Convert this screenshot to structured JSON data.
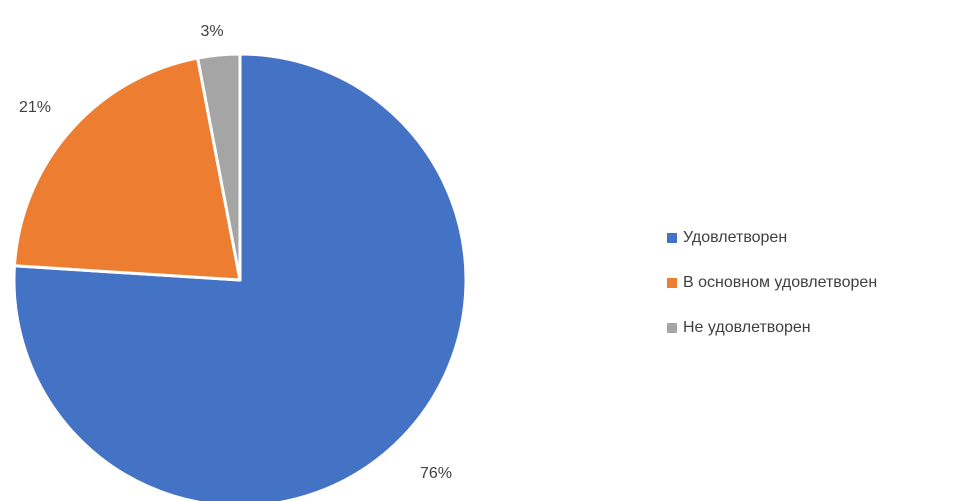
{
  "chart_data": {
    "type": "pie",
    "title": "",
    "start_angle_deg": 0,
    "direction": "clockwise",
    "slices": [
      {
        "label": "Удовлетворен",
        "value": 76,
        "value_label": "76%",
        "color": "#4472C4"
      },
      {
        "label": "В основном удовлетворен",
        "value": 21,
        "value_label": "21%",
        "color": "#ED7D31"
      },
      {
        "label": "Не удовлетворен",
        "value": 3,
        "value_label": "3%",
        "color": "#A5A5A5"
      }
    ],
    "legend": {
      "position": "right",
      "items": [
        {
          "label": "Удовлетворен",
          "color": "#4472C4"
        },
        {
          "label": "В основном удовлетворен",
          "color": "#ED7D31"
        },
        {
          "label": "Не удовлетворен",
          "color": "#A5A5A5"
        }
      ]
    },
    "label_color": "#404040"
  }
}
